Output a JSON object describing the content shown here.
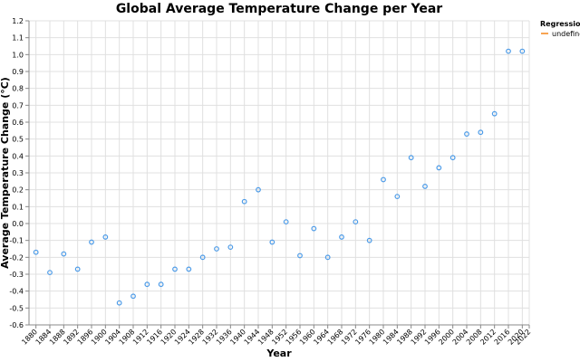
{
  "chart_data": {
    "type": "scatter",
    "title": "Global Average Temperature Change per Year",
    "xlabel": "Year",
    "ylabel": "Average Temperature Change (°C)",
    "xlim": [
      1878,
      2022
    ],
    "ylim": [
      -0.6,
      1.2
    ],
    "x_ticks": [
      1880,
      1884,
      1888,
      1892,
      1896,
      1900,
      1904,
      1908,
      1912,
      1916,
      1920,
      1924,
      1928,
      1932,
      1936,
      1940,
      1944,
      1948,
      1952,
      1956,
      1960,
      1964,
      1968,
      1972,
      1976,
      1980,
      1984,
      1988,
      1992,
      1996,
      2000,
      2004,
      2008,
      2012,
      2016,
      2020,
      2022
    ],
    "y_ticks": [
      -0.6,
      -0.5,
      -0.4,
      -0.3,
      -0.2,
      -0.1,
      0.0,
      0.1,
      0.2,
      0.3,
      0.4,
      0.5,
      0.6,
      0.7,
      0.8,
      0.9,
      1.0,
      1.1,
      1.2
    ],
    "x": [
      1880,
      1884,
      1888,
      1892,
      1896,
      1900,
      1904,
      1908,
      1912,
      1916,
      1920,
      1924,
      1928,
      1932,
      1936,
      1940,
      1944,
      1948,
      1952,
      1956,
      1960,
      1964,
      1968,
      1972,
      1976,
      1980,
      1984,
      1988,
      1992,
      1996,
      2000,
      2004,
      2008,
      2012,
      2016,
      2020
    ],
    "y": [
      -0.17,
      -0.29,
      -0.18,
      -0.27,
      -0.11,
      -0.08,
      -0.47,
      -0.43,
      -0.36,
      -0.36,
      -0.27,
      -0.27,
      -0.2,
      -0.15,
      -0.14,
      0.13,
      0.2,
      -0.11,
      0.01,
      -0.19,
      -0.03,
      -0.2,
      -0.08,
      0.01,
      -0.1,
      0.26,
      0.16,
      0.39,
      0.22,
      0.33,
      0.39,
      0.53,
      0.54,
      0.65,
      1.02,
      1.02
    ],
    "legend": {
      "title": "Regression",
      "entries": [
        "undefined"
      ],
      "placement": "top-right"
    },
    "grid": true,
    "colors": {
      "point": "#4c9be8",
      "regression": "#f58518",
      "grid": "#e0e0e0",
      "axis": "#888888"
    }
  }
}
